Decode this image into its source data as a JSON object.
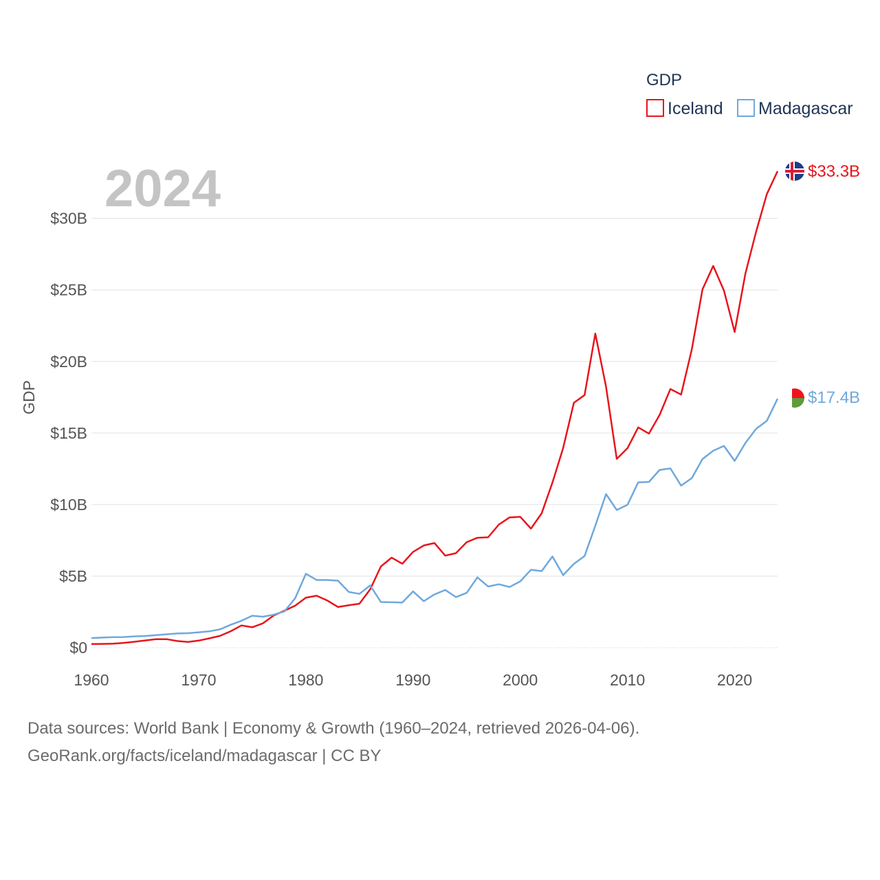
{
  "chart_data": {
    "type": "line",
    "title": "GDP",
    "year_label": "2024",
    "ylabel": "GDP",
    "xlabel": "",
    "xlim": [
      1960,
      2024
    ],
    "ylim": [
      0,
      33300000000
    ],
    "x_ticks": [
      1960,
      1970,
      1980,
      1990,
      2000,
      2010,
      2020
    ],
    "x_tick_labels": [
      "1960",
      "1970",
      "1980",
      "1990",
      "2000",
      "2010",
      "2020"
    ],
    "y_ticks": [
      0,
      5000000000,
      10000000000,
      15000000000,
      20000000000,
      25000000000,
      30000000000
    ],
    "y_tick_labels": [
      "$0",
      "$5B",
      "$10B",
      "$15B",
      "$20B",
      "$25B",
      "$30B"
    ],
    "legend": {
      "title": "GDP",
      "position": "top-right"
    },
    "x": [
      1960,
      1961,
      1962,
      1963,
      1964,
      1965,
      1966,
      1967,
      1968,
      1969,
      1970,
      1971,
      1972,
      1973,
      1974,
      1975,
      1976,
      1977,
      1978,
      1979,
      1980,
      1981,
      1982,
      1983,
      1984,
      1985,
      1986,
      1987,
      1988,
      1989,
      1990,
      1991,
      1992,
      1993,
      1994,
      1995,
      1996,
      1997,
      1998,
      1999,
      2000,
      2001,
      2002,
      2003,
      2004,
      2005,
      2006,
      2007,
      2008,
      2009,
      2010,
      2011,
      2012,
      2013,
      2014,
      2015,
      2016,
      2017,
      2018,
      2019,
      2020,
      2021,
      2022,
      2023,
      2024
    ],
    "series": [
      {
        "name": "Iceland",
        "color": "#e8141c",
        "end_label": "$33.3B",
        "values": [
          0.25,
          0.26,
          0.28,
          0.33,
          0.41,
          0.5,
          0.59,
          0.59,
          0.46,
          0.4,
          0.49,
          0.65,
          0.82,
          1.15,
          1.55,
          1.42,
          1.7,
          2.25,
          2.58,
          2.93,
          3.49,
          3.63,
          3.29,
          2.84,
          2.96,
          3.07,
          4.07,
          5.67,
          6.29,
          5.86,
          6.69,
          7.14,
          7.31,
          6.43,
          6.6,
          7.37,
          7.68,
          7.71,
          8.6,
          9.1,
          9.14,
          8.32,
          9.39,
          11.53,
          13.95,
          17.11,
          17.65,
          21.95,
          18.24,
          13.19,
          13.94,
          15.39,
          14.96,
          16.27,
          18.07,
          17.69,
          20.85,
          25.04,
          26.68,
          24.96,
          22.06,
          26.14,
          29.07,
          31.7,
          33.3
        ],
        "value_units": "billion USD"
      },
      {
        "name": "Madagascar",
        "color": "#6fa8dc",
        "end_label": "$17.4B",
        "values": [
          0.67,
          0.7,
          0.73,
          0.74,
          0.79,
          0.81,
          0.87,
          0.93,
          0.99,
          1.01,
          1.07,
          1.14,
          1.28,
          1.6,
          1.88,
          2.23,
          2.16,
          2.3,
          2.53,
          3.45,
          5.16,
          4.73,
          4.73,
          4.68,
          3.89,
          3.76,
          4.35,
          3.19,
          3.17,
          3.15,
          3.93,
          3.25,
          3.72,
          4.03,
          3.53,
          3.83,
          4.91,
          4.27,
          4.43,
          4.24,
          4.63,
          5.44,
          5.35,
          6.37,
          5.07,
          5.85,
          6.4,
          8.52,
          10.73,
          9.62,
          9.98,
          11.55,
          11.58,
          12.42,
          12.52,
          11.32,
          11.85,
          13.18,
          13.76,
          14.1,
          13.05,
          14.3,
          15.29,
          15.85,
          17.4
        ],
        "value_units": "billion USD"
      }
    ]
  },
  "footer": {
    "line1": "Data sources: World Bank | Economy & Growth (1960–2024, retrieved 2026-04-06).",
    "line2": "GeoRank.org/facts/iceland/madagascar | CC BY"
  }
}
